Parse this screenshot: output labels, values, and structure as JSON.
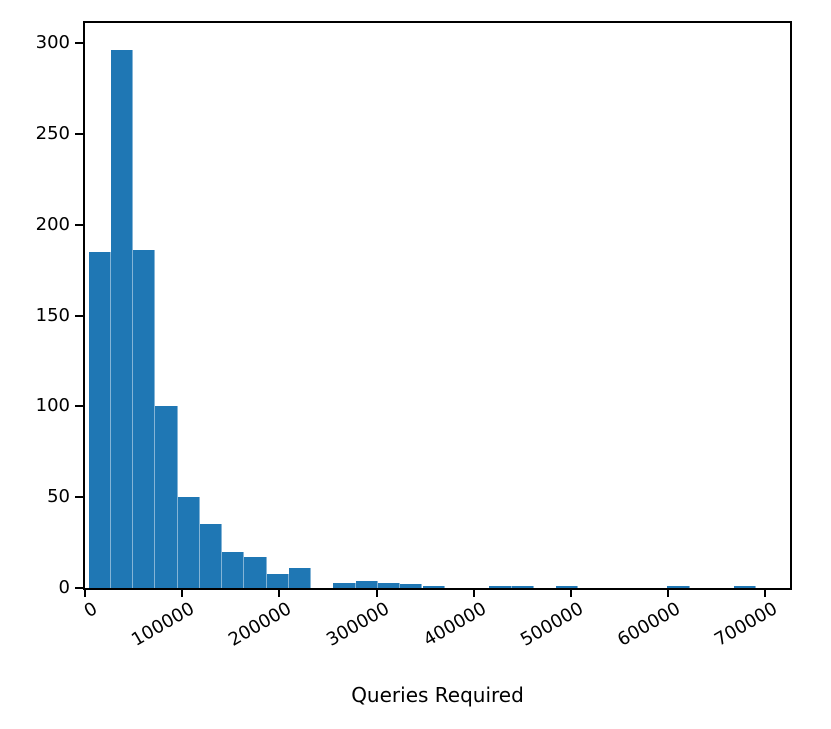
{
  "chart_data": {
    "type": "bar",
    "subtype": "histogram",
    "title": "",
    "xlabel": "Queries Required",
    "ylabel": "",
    "bar_color": "#1f77b4",
    "axis_color": "#000000",
    "background_color": "#ffffff",
    "grid": false,
    "legend": false,
    "n_bins": 30,
    "bin_start": 3600,
    "bin_width": 22913,
    "counts": [
      185,
      296,
      186,
      100,
      50,
      35,
      20,
      17,
      8,
      11,
      0,
      3,
      4,
      3,
      2,
      1,
      0,
      0,
      1,
      1,
      0,
      1,
      0,
      0,
      0,
      0,
      1,
      0,
      0,
      1
    ],
    "xlim": [
      0,
      725500
    ],
    "ylim": [
      0,
      311
    ],
    "x_ticks": [
      {
        "value": 0,
        "label": "0"
      },
      {
        "value": 100000,
        "label": "100000"
      },
      {
        "value": 200000,
        "label": "200000"
      },
      {
        "value": 300000,
        "label": "300000"
      },
      {
        "value": 400000,
        "label": "400000"
      },
      {
        "value": 500000,
        "label": "500000"
      },
      {
        "value": 600000,
        "label": "600000"
      },
      {
        "value": 700000,
        "label": "700000"
      }
    ],
    "y_ticks": [
      {
        "value": 0,
        "label": "0"
      },
      {
        "value": 50,
        "label": "50"
      },
      {
        "value": 100,
        "label": "100"
      },
      {
        "value": 150,
        "label": "150"
      },
      {
        "value": 200,
        "label": "200"
      },
      {
        "value": 250,
        "label": "250"
      },
      {
        "value": 300,
        "label": "300"
      }
    ],
    "x_tick_rotation_deg": 30
  }
}
